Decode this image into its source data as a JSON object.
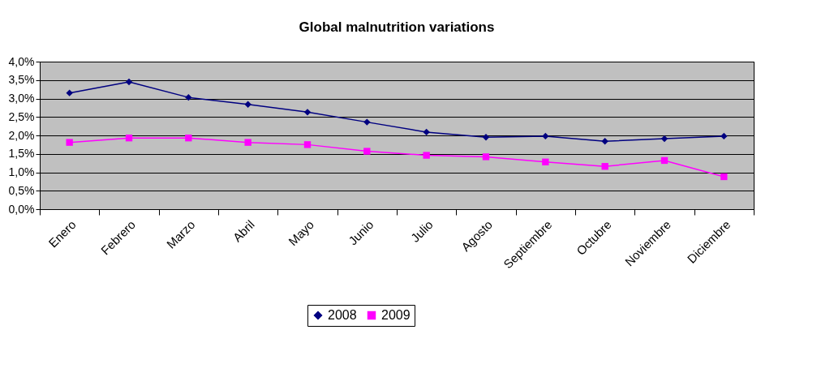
{
  "chart_data": {
    "type": "line",
    "title": "Global malnutrition variations",
    "categories": [
      "Enero",
      "Febrero",
      "Marzo",
      "Abril",
      "Mayo",
      "Junio",
      "Julio",
      "Agosto",
      "Septiembre",
      "Octubre",
      "Noviembre",
      "Diciembre"
    ],
    "series": [
      {
        "name": "2008",
        "color": "#000080",
        "marker": "diamond",
        "values": [
          3.15,
          3.45,
          3.03,
          2.84,
          2.63,
          2.36,
          2.09,
          1.95,
          1.98,
          1.84,
          1.91,
          1.98
        ]
      },
      {
        "name": "2009",
        "color": "#ff00ff",
        "marker": "square",
        "values": [
          1.81,
          1.93,
          1.93,
          1.81,
          1.75,
          1.57,
          1.46,
          1.42,
          1.28,
          1.16,
          1.32,
          0.88
        ]
      }
    ],
    "ylim": [
      0,
      4
    ],
    "yticks": [
      {
        "value": 0,
        "label": "0,0%"
      },
      {
        "value": 0.5,
        "label": "0,5%"
      },
      {
        "value": 1,
        "label": "1,0%"
      },
      {
        "value": 1.5,
        "label": "1,5%"
      },
      {
        "value": 2,
        "label": "2,0%"
      },
      {
        "value": 2.5,
        "label": "2,5%"
      },
      {
        "value": 3,
        "label": "3,0%"
      },
      {
        "value": 3.5,
        "label": "3,5%"
      },
      {
        "value": 4,
        "label": "4,0%"
      }
    ],
    "grid": "y",
    "legend": "bottom",
    "line_style": "solid"
  }
}
